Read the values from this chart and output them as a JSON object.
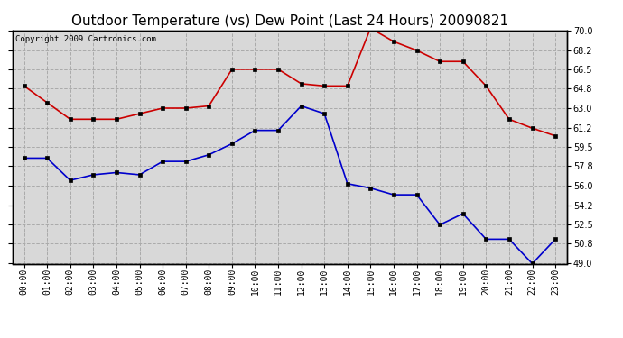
{
  "title": "Outdoor Temperature (vs) Dew Point (Last 24 Hours) 20090821",
  "copyright": "Copyright 2009 Cartronics.com",
  "hours": [
    "00:00",
    "01:00",
    "02:00",
    "03:00",
    "04:00",
    "05:00",
    "06:00",
    "07:00",
    "08:00",
    "09:00",
    "10:00",
    "11:00",
    "12:00",
    "13:00",
    "14:00",
    "15:00",
    "16:00",
    "17:00",
    "18:00",
    "19:00",
    "20:00",
    "21:00",
    "22:00",
    "23:00"
  ],
  "temp": [
    65.0,
    63.5,
    62.0,
    62.0,
    62.0,
    62.5,
    63.0,
    63.0,
    63.2,
    66.5,
    66.5,
    66.5,
    65.2,
    65.0,
    65.0,
    70.2,
    69.0,
    68.2,
    67.2,
    67.2,
    65.0,
    62.0,
    61.2,
    60.5
  ],
  "dew": [
    58.5,
    58.5,
    56.5,
    57.0,
    57.2,
    57.0,
    58.2,
    58.2,
    58.8,
    59.8,
    61.0,
    61.0,
    63.2,
    62.5,
    56.2,
    55.8,
    55.2,
    55.2,
    52.5,
    53.5,
    51.2,
    51.2,
    49.0,
    51.2
  ],
  "temp_color": "#cc0000",
  "dew_color": "#0000cc",
  "marker": "s",
  "marker_size": 3,
  "grid_color": "#aaaaaa",
  "bg_color": "#ffffff",
  "plot_bg": "#d8d8d8",
  "ylim": [
    49.0,
    70.0
  ],
  "yticks": [
    49.0,
    50.8,
    52.5,
    54.2,
    56.0,
    57.8,
    59.5,
    61.2,
    63.0,
    64.8,
    66.5,
    68.2,
    70.0
  ],
  "title_fontsize": 11,
  "copyright_fontsize": 6.5,
  "tick_fontsize": 7
}
